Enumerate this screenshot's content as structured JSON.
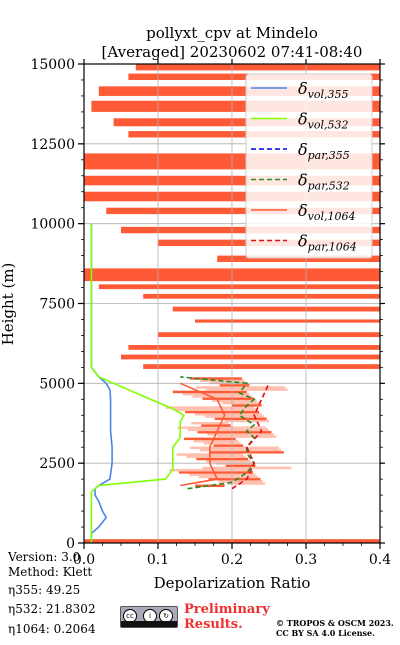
{
  "chart_data": {
    "type": "line",
    "title": "pollyxt_cpv at Mindelo",
    "subtitle": "[Averaged] 20230602 07:41-08:40",
    "xlabel": "Depolarization Ratio",
    "ylabel": "Height (m)",
    "xlim": [
      0.0,
      0.4
    ],
    "ylim": [
      0,
      15000
    ],
    "x_ticks": [
      "0.0",
      "0.1",
      "0.2",
      "0.3",
      "0.4"
    ],
    "y_ticks": [
      "0",
      "2500",
      "5000",
      "7500",
      "10000",
      "12500",
      "15000"
    ],
    "grid": true,
    "legend_position": "top-right",
    "series": [
      {
        "name": "δvol,355",
        "color": "#4a86e8",
        "dash": "solid",
        "height": [
          0,
          300,
          500,
          800,
          1000,
          1300,
          1500,
          1700,
          1800,
          2000,
          2500,
          3000,
          3500,
          4000,
          4500,
          4800,
          5000,
          5200,
          5500,
          6000,
          7000,
          8000,
          9000,
          10000
        ],
        "values": [
          0.01,
          0.01,
          0.02,
          0.03,
          0.025,
          0.02,
          0.015,
          0.015,
          0.02,
          0.035,
          0.038,
          0.038,
          0.036,
          0.036,
          0.036,
          0.035,
          0.03,
          0.02,
          0.01,
          0.01,
          0.01,
          0.01,
          0.01,
          0.01
        ]
      },
      {
        "name": "δvol,532",
        "color": "#80ff00",
        "dash": "solid",
        "height": [
          0,
          300,
          800,
          1300,
          1600,
          1800,
          2000,
          2300,
          2600,
          3000,
          3300,
          3700,
          3800,
          4000,
          4200,
          4400,
          4600,
          4800,
          5000,
          5200,
          5500,
          6000,
          7000,
          8000,
          9000,
          10000
        ],
        "values": [
          0.01,
          0.01,
          0.01,
          0.01,
          0.01,
          0.02,
          0.11,
          0.12,
          0.12,
          0.12,
          0.13,
          0.13,
          0.13,
          0.135,
          0.12,
          0.1,
          0.08,
          0.06,
          0.04,
          0.02,
          0.01,
          0.01,
          0.01,
          0.01,
          0.01,
          0.01
        ]
      },
      {
        "name": "δpar,355",
        "color": "#0000ff",
        "dash": "dashed",
        "height": [],
        "values": []
      },
      {
        "name": "δpar,532",
        "color": "#228b22",
        "dash": "dashed",
        "height": [
          1700,
          1900,
          2200,
          2500,
          2800,
          3000,
          3300,
          3500,
          3700,
          4000,
          4300,
          4500,
          4700,
          5000,
          5200
        ],
        "values": [
          0.14,
          0.2,
          0.22,
          0.23,
          0.22,
          0.22,
          0.23,
          0.22,
          0.23,
          0.21,
          0.22,
          0.23,
          0.21,
          0.22,
          0.13
        ]
      },
      {
        "name": "δvol,1064",
        "color": "#ff5a36",
        "dash": "solid",
        "height": [
          1800,
          2000,
          2500,
          3000,
          3500,
          4000,
          4500,
          5000
        ],
        "values": [
          0.13,
          0.18,
          0.17,
          0.17,
          0.18,
          0.19,
          0.18,
          0.13
        ]
      },
      {
        "name": "δpar,1064",
        "color": "#dd1111",
        "dash": "dashed",
        "height": [
          1700,
          2000,
          2500,
          3000,
          3500,
          4000,
          4500,
          5000
        ],
        "values": [
          0.2,
          0.22,
          0.23,
          0.22,
          0.24,
          0.23,
          0.24,
          0.25
        ]
      }
    ]
  },
  "metadata": {
    "version": "Version: 3.0",
    "method": "Method: Klett",
    "eta355": "η355:  49.25",
    "eta532": "η532: 21.8302",
    "eta1064": "η1064: 0.2064"
  },
  "footer": {
    "preliminary_line1": "Preliminary",
    "preliminary_line2": "Results.",
    "copyright_line1": "© TROPOS & OSCM 2023.",
    "copyright_line2": "CC BY SA 4.0 License.",
    "license_badge": "cc by sa"
  },
  "colors": {
    "red_band": "#ff5a36",
    "light_red_band": "#ffc0b0",
    "preliminary_text": "#f03030"
  }
}
